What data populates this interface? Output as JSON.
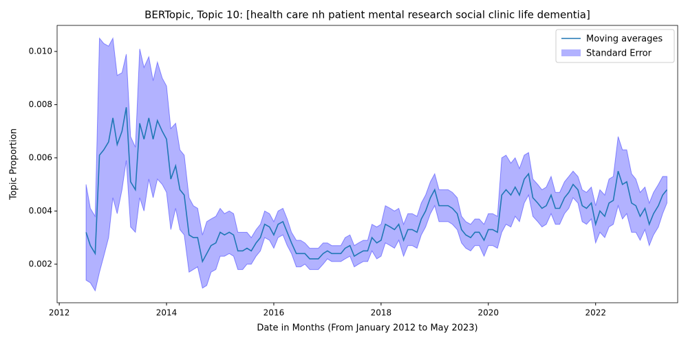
{
  "chart_data": {
    "type": "line",
    "title": "BERTopic, Topic 10: [health care nh patient mental research social clinic life dementia]",
    "xlabel": "Date in Months (From January 2012 to May 2023)",
    "ylabel": "Topic Proportion",
    "x": [
      2012.5,
      2012.58,
      2012.67,
      2012.75,
      2012.83,
      2012.92,
      2013,
      2013.08,
      2013.17,
      2013.25,
      2013.33,
      2013.42,
      2013.5,
      2013.58,
      2013.67,
      2013.75,
      2013.83,
      2013.92,
      2014,
      2014.08,
      2014.17,
      2014.25,
      2014.33,
      2014.42,
      2014.5,
      2014.58,
      2014.67,
      2014.75,
      2014.83,
      2014.92,
      2015,
      2015.08,
      2015.17,
      2015.25,
      2015.33,
      2015.42,
      2015.5,
      2015.58,
      2015.67,
      2015.75,
      2015.83,
      2015.92,
      2016,
      2016.08,
      2016.17,
      2016.25,
      2016.33,
      2016.42,
      2016.5,
      2016.58,
      2016.67,
      2016.75,
      2016.83,
      2016.92,
      2017,
      2017.08,
      2017.17,
      2017.25,
      2017.33,
      2017.42,
      2017.5,
      2017.58,
      2017.67,
      2017.75,
      2017.83,
      2017.92,
      2018,
      2018.08,
      2018.17,
      2018.25,
      2018.33,
      2018.42,
      2018.5,
      2018.58,
      2018.67,
      2018.75,
      2018.83,
      2018.92,
      2019,
      2019.08,
      2019.17,
      2019.25,
      2019.33,
      2019.42,
      2019.5,
      2019.58,
      2019.67,
      2019.75,
      2019.83,
      2019.92,
      2020,
      2020.08,
      2020.17,
      2020.25,
      2020.33,
      2020.42,
      2020.5,
      2020.58,
      2020.67,
      2020.75,
      2020.83,
      2020.92,
      2021,
      2021.08,
      2021.17,
      2021.25,
      2021.33,
      2021.42,
      2021.5,
      2021.58,
      2021.67,
      2021.75,
      2021.83,
      2021.92,
      2022,
      2022.08,
      2022.17,
      2022.25,
      2022.33,
      2022.42,
      2022.5,
      2022.58,
      2022.67,
      2022.75,
      2022.83,
      2022.92,
      2023,
      2023.08,
      2023.17,
      2023.25,
      2023.33
    ],
    "series": [
      {
        "name": "Moving averages",
        "color": "#1f77b4",
        "values": [
          0.0032,
          0.0027,
          0.0024,
          0.0061,
          0.0063,
          0.0066,
          0.0075,
          0.0065,
          0.007,
          0.0079,
          0.0051,
          0.0048,
          0.0073,
          0.0067,
          0.0075,
          0.0067,
          0.0074,
          0.007,
          0.0067,
          0.0052,
          0.0057,
          0.0048,
          0.0046,
          0.0031,
          0.003,
          0.003,
          0.0021,
          0.0024,
          0.0027,
          0.0028,
          0.0032,
          0.0031,
          0.0032,
          0.0031,
          0.0025,
          0.0025,
          0.0026,
          0.0025,
          0.0028,
          0.003,
          0.0035,
          0.0034,
          0.0031,
          0.0035,
          0.0036,
          0.0032,
          0.0028,
          0.0024,
          0.0024,
          0.0024,
          0.0022,
          0.0022,
          0.0022,
          0.0024,
          0.0025,
          0.0024,
          0.0024,
          0.0024,
          0.0026,
          0.0027,
          0.0023,
          0.0024,
          0.0025,
          0.0025,
          0.003,
          0.0028,
          0.0029,
          0.0035,
          0.0034,
          0.0033,
          0.0035,
          0.0029,
          0.0033,
          0.0033,
          0.0032,
          0.0037,
          0.004,
          0.0045,
          0.0048,
          0.0042,
          0.0042,
          0.0042,
          0.0041,
          0.0039,
          0.0033,
          0.0031,
          0.003,
          0.0032,
          0.0032,
          0.0029,
          0.0033,
          0.0033,
          0.0032,
          0.0046,
          0.0048,
          0.0046,
          0.0049,
          0.0046,
          0.0052,
          0.0054,
          0.0045,
          0.0043,
          0.0041,
          0.0042,
          0.0046,
          0.0041,
          0.0041,
          0.0045,
          0.0047,
          0.005,
          0.0048,
          0.0042,
          0.0041,
          0.0043,
          0.0035,
          0.004,
          0.0038,
          0.0043,
          0.0044,
          0.0055,
          0.005,
          0.0051,
          0.0043,
          0.0042,
          0.0038,
          0.0041,
          0.0035,
          0.0039,
          0.0042,
          0.0046,
          0.0048
        ]
      },
      {
        "name": "Standard Error",
        "color": "#0000ff",
        "alpha": 0.3,
        "values": [
          0.0018,
          0.0014,
          0.0014,
          0.0044,
          0.004,
          0.0036,
          0.003,
          0.0026,
          0.0022,
          0.002,
          0.0017,
          0.0016,
          0.0028,
          0.0027,
          0.0023,
          0.0022,
          0.0022,
          0.002,
          0.002,
          0.0019,
          0.0016,
          0.0015,
          0.0015,
          0.0014,
          0.0012,
          0.0011,
          0.001,
          0.0012,
          0.001,
          0.001,
          0.0009,
          0.0008,
          0.0008,
          0.0008,
          0.0007,
          0.0007,
          0.0006,
          0.0005,
          0.0005,
          0.0005,
          0.0005,
          0.0005,
          0.0005,
          0.0005,
          0.0005,
          0.0005,
          0.0004,
          0.0005,
          0.0005,
          0.0004,
          0.0004,
          0.0004,
          0.0004,
          0.0004,
          0.0003,
          0.0003,
          0.0003,
          0.0003,
          0.0004,
          0.0004,
          0.0004,
          0.0004,
          0.0004,
          0.0004,
          0.0005,
          0.0006,
          0.0006,
          0.0007,
          0.0007,
          0.0007,
          0.0006,
          0.0006,
          0.0006,
          0.0006,
          0.0006,
          0.0006,
          0.0006,
          0.0006,
          0.0006,
          0.0006,
          0.0006,
          0.0006,
          0.0006,
          0.0006,
          0.0005,
          0.0005,
          0.0005,
          0.0005,
          0.0005,
          0.0006,
          0.0006,
          0.0006,
          0.0006,
          0.0014,
          0.0013,
          0.0012,
          0.0011,
          0.001,
          0.0009,
          0.0008,
          0.0007,
          0.0007,
          0.0007,
          0.0007,
          0.0007,
          0.0006,
          0.0006,
          0.0006,
          0.0006,
          0.0005,
          0.0005,
          0.0006,
          0.0006,
          0.0006,
          0.0007,
          0.0008,
          0.0008,
          0.0009,
          0.0009,
          0.0013,
          0.0013,
          0.0012,
          0.0011,
          0.001,
          0.0009,
          0.0008,
          0.0008,
          0.0008,
          0.0008,
          0.0007,
          0.0005
        ]
      }
    ],
    "xlim": [
      2011.96,
      2023.53
    ],
    "xticks": [
      2012,
      2014,
      2016,
      2018,
      2020,
      2022
    ],
    "ylim": [
      0.00055,
      0.01098
    ],
    "yticks": [
      0.002,
      0.004,
      0.006,
      0.008,
      {
        "value": 0.01,
        "label": "0.010"
      }
    ],
    "legend": "upper right",
    "grid": false
  }
}
